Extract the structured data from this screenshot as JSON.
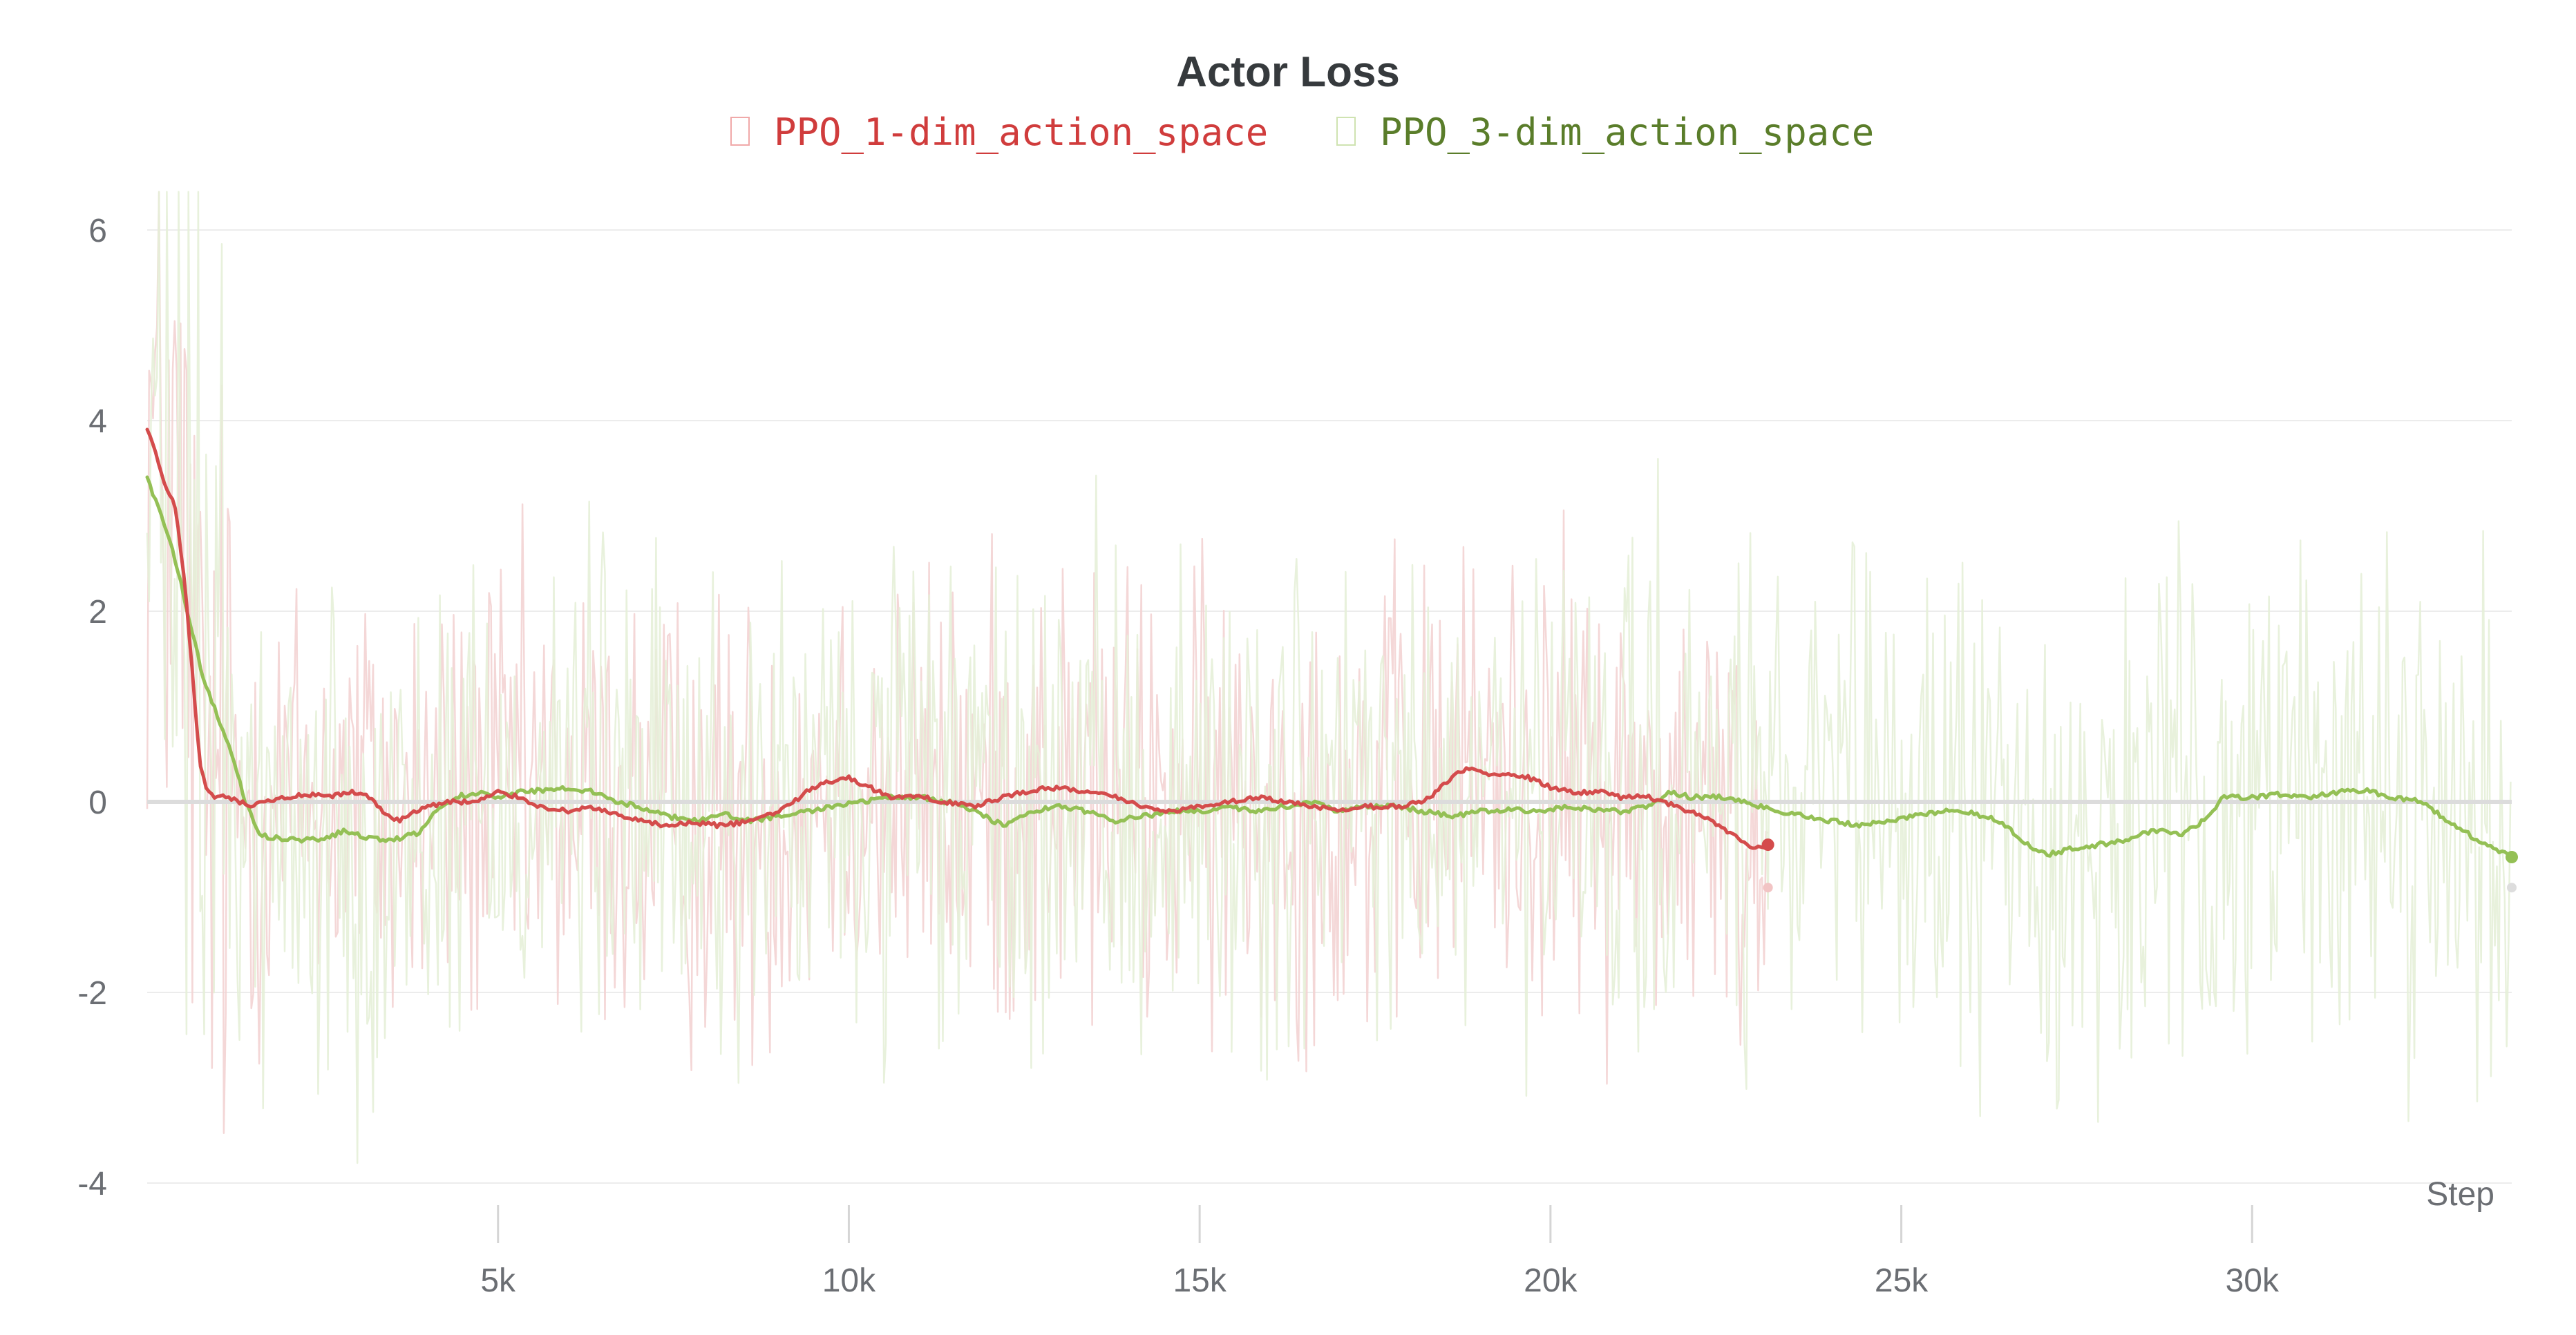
{
  "chart_data": {
    "type": "line",
    "title": "Actor Loss",
    "xlabel": "Step",
    "ylabel": "",
    "xlim": [
      0,
      33700
    ],
    "ylim": [
      -4.2,
      6.5
    ],
    "x_ticks": [
      5000,
      10000,
      15000,
      20000,
      25000,
      30000
    ],
    "x_tick_labels": [
      "5k",
      "10k",
      "15k",
      "20k",
      "25k",
      "30k"
    ],
    "y_ticks": [
      6,
      4,
      2,
      0,
      -2,
      -4
    ],
    "y_tick_labels": [
      "6",
      "4",
      "2",
      "0",
      "-2",
      "-4"
    ],
    "grid": true,
    "legend_position": "top-center",
    "zero_line": true,
    "series": [
      {
        "name": "PPO_1-dim_action_space",
        "color": "#d44c4c",
        "raw_color": "#f3d3d3",
        "raw_noise_amplitude": 1.2,
        "raw_x_end": 23100,
        "smoothed": [
          [
            0,
            3.9
          ],
          [
            150,
            3.6
          ],
          [
            250,
            3.3
          ],
          [
            400,
            3.1
          ],
          [
            550,
            2.2
          ],
          [
            650,
            1.3
          ],
          [
            750,
            0.4
          ],
          [
            850,
            0.1
          ],
          [
            950,
            0.05
          ],
          [
            1100,
            0.05
          ],
          [
            1300,
            0.0
          ],
          [
            1500,
            -0.05
          ],
          [
            1700,
            0.0
          ],
          [
            2000,
            0.05
          ],
          [
            2300,
            0.07
          ],
          [
            2600,
            0.05
          ],
          [
            2900,
            0.1
          ],
          [
            3200,
            0.05
          ],
          [
            3400,
            -0.15
          ],
          [
            3600,
            -0.2
          ],
          [
            3800,
            -0.1
          ],
          [
            4000,
            -0.05
          ],
          [
            4300,
            0.0
          ],
          [
            4700,
            0.0
          ],
          [
            5000,
            0.1
          ],
          [
            5300,
            0.05
          ],
          [
            5600,
            -0.05
          ],
          [
            6000,
            -0.1
          ],
          [
            6300,
            -0.05
          ],
          [
            6600,
            -0.12
          ],
          [
            7000,
            -0.2
          ],
          [
            7400,
            -0.25
          ],
          [
            7800,
            -0.22
          ],
          [
            8200,
            -0.25
          ],
          [
            8600,
            -0.2
          ],
          [
            9000,
            -0.1
          ],
          [
            9300,
            0.05
          ],
          [
            9600,
            0.2
          ],
          [
            10000,
            0.25
          ],
          [
            10300,
            0.15
          ],
          [
            10600,
            0.05
          ],
          [
            11000,
            0.05
          ],
          [
            11400,
            0.0
          ],
          [
            11800,
            -0.05
          ],
          [
            12200,
            0.05
          ],
          [
            12600,
            0.12
          ],
          [
            13000,
            0.15
          ],
          [
            13400,
            0.1
          ],
          [
            13800,
            0.05
          ],
          [
            14200,
            -0.05
          ],
          [
            14600,
            -0.1
          ],
          [
            15000,
            -0.05
          ],
          [
            15400,
            0.0
          ],
          [
            15800,
            0.05
          ],
          [
            16200,
            0.0
          ],
          [
            16600,
            -0.05
          ],
          [
            17000,
            -0.1
          ],
          [
            17400,
            -0.05
          ],
          [
            17800,
            -0.05
          ],
          [
            18200,
            0.0
          ],
          [
            18500,
            0.2
          ],
          [
            18800,
            0.35
          ],
          [
            19100,
            0.3
          ],
          [
            19400,
            0.3
          ],
          [
            19700,
            0.25
          ],
          [
            20000,
            0.15
          ],
          [
            20300,
            0.1
          ],
          [
            20700,
            0.1
          ],
          [
            21000,
            0.05
          ],
          [
            21400,
            0.05
          ],
          [
            21800,
            -0.05
          ],
          [
            22200,
            -0.15
          ],
          [
            22600,
            -0.35
          ],
          [
            22900,
            -0.48
          ],
          [
            23100,
            -0.45
          ]
        ]
      },
      {
        "name": "PPO_3-dim_action_space",
        "color": "#94c055",
        "raw_color": "#e6f0d8",
        "raw_noise_amplitude": 1.3,
        "raw_x_end": 33700,
        "smoothed": [
          [
            0,
            3.4
          ],
          [
            150,
            3.1
          ],
          [
            300,
            2.8
          ],
          [
            450,
            2.4
          ],
          [
            600,
            1.9
          ],
          [
            800,
            1.3
          ],
          [
            1000,
            0.9
          ],
          [
            1200,
            0.5
          ],
          [
            1400,
            0.0
          ],
          [
            1600,
            -0.35
          ],
          [
            1800,
            -0.38
          ],
          [
            2200,
            -0.4
          ],
          [
            2500,
            -0.4
          ],
          [
            2800,
            -0.3
          ],
          [
            3000,
            -0.35
          ],
          [
            3300,
            -0.4
          ],
          [
            3600,
            -0.38
          ],
          [
            3900,
            -0.32
          ],
          [
            4100,
            -0.1
          ],
          [
            4400,
            0.05
          ],
          [
            4700,
            0.1
          ],
          [
            5000,
            0.05
          ],
          [
            5300,
            0.1
          ],
          [
            5600,
            0.12
          ],
          [
            6000,
            0.15
          ],
          [
            6400,
            0.1
          ],
          [
            6700,
            0.0
          ],
          [
            7000,
            -0.05
          ],
          [
            7400,
            -0.15
          ],
          [
            7800,
            -0.2
          ],
          [
            8200,
            -0.12
          ],
          [
            8600,
            -0.2
          ],
          [
            9000,
            -0.15
          ],
          [
            9400,
            -0.1
          ],
          [
            9800,
            -0.05
          ],
          [
            10200,
            0.0
          ],
          [
            10600,
            0.05
          ],
          [
            11000,
            0.05
          ],
          [
            11400,
            0.0
          ],
          [
            11800,
            -0.1
          ],
          [
            12200,
            -0.25
          ],
          [
            12600,
            -0.1
          ],
          [
            13000,
            -0.05
          ],
          [
            13400,
            -0.1
          ],
          [
            13800,
            -0.2
          ],
          [
            14200,
            -0.15
          ],
          [
            14600,
            -0.1
          ],
          [
            15000,
            -0.1
          ],
          [
            15400,
            -0.05
          ],
          [
            15800,
            -0.1
          ],
          [
            16200,
            -0.05
          ],
          [
            16600,
            0.0
          ],
          [
            17000,
            -0.1
          ],
          [
            17400,
            -0.05
          ],
          [
            17800,
            -0.05
          ],
          [
            18200,
            -0.1
          ],
          [
            18600,
            -0.15
          ],
          [
            19000,
            -0.1
          ],
          [
            19400,
            -0.08
          ],
          [
            19800,
            -0.1
          ],
          [
            20200,
            -0.05
          ],
          [
            20600,
            -0.08
          ],
          [
            21000,
            -0.1
          ],
          [
            21400,
            -0.05
          ],
          [
            21700,
            0.1
          ],
          [
            22000,
            0.05
          ],
          [
            22400,
            0.05
          ],
          [
            22800,
            0.0
          ],
          [
            23200,
            -0.1
          ],
          [
            23600,
            -0.15
          ],
          [
            24000,
            -0.2
          ],
          [
            24400,
            -0.25
          ],
          [
            24800,
            -0.2
          ],
          [
            25200,
            -0.15
          ],
          [
            25600,
            -0.1
          ],
          [
            26000,
            -0.12
          ],
          [
            26400,
            -0.2
          ],
          [
            26800,
            -0.45
          ],
          [
            27100,
            -0.55
          ],
          [
            27400,
            -0.5
          ],
          [
            27800,
            -0.45
          ],
          [
            28200,
            -0.4
          ],
          [
            28600,
            -0.3
          ],
          [
            29000,
            -0.35
          ],
          [
            29300,
            -0.2
          ],
          [
            29600,
            0.05
          ],
          [
            30000,
            0.05
          ],
          [
            30400,
            0.08
          ],
          [
            30800,
            0.05
          ],
          [
            31200,
            0.1
          ],
          [
            31600,
            0.12
          ],
          [
            32000,
            0.05
          ],
          [
            32400,
            0.0
          ],
          [
            32800,
            -0.2
          ],
          [
            33200,
            -0.4
          ],
          [
            33500,
            -0.5
          ],
          [
            33700,
            -0.58
          ]
        ]
      }
    ]
  }
}
